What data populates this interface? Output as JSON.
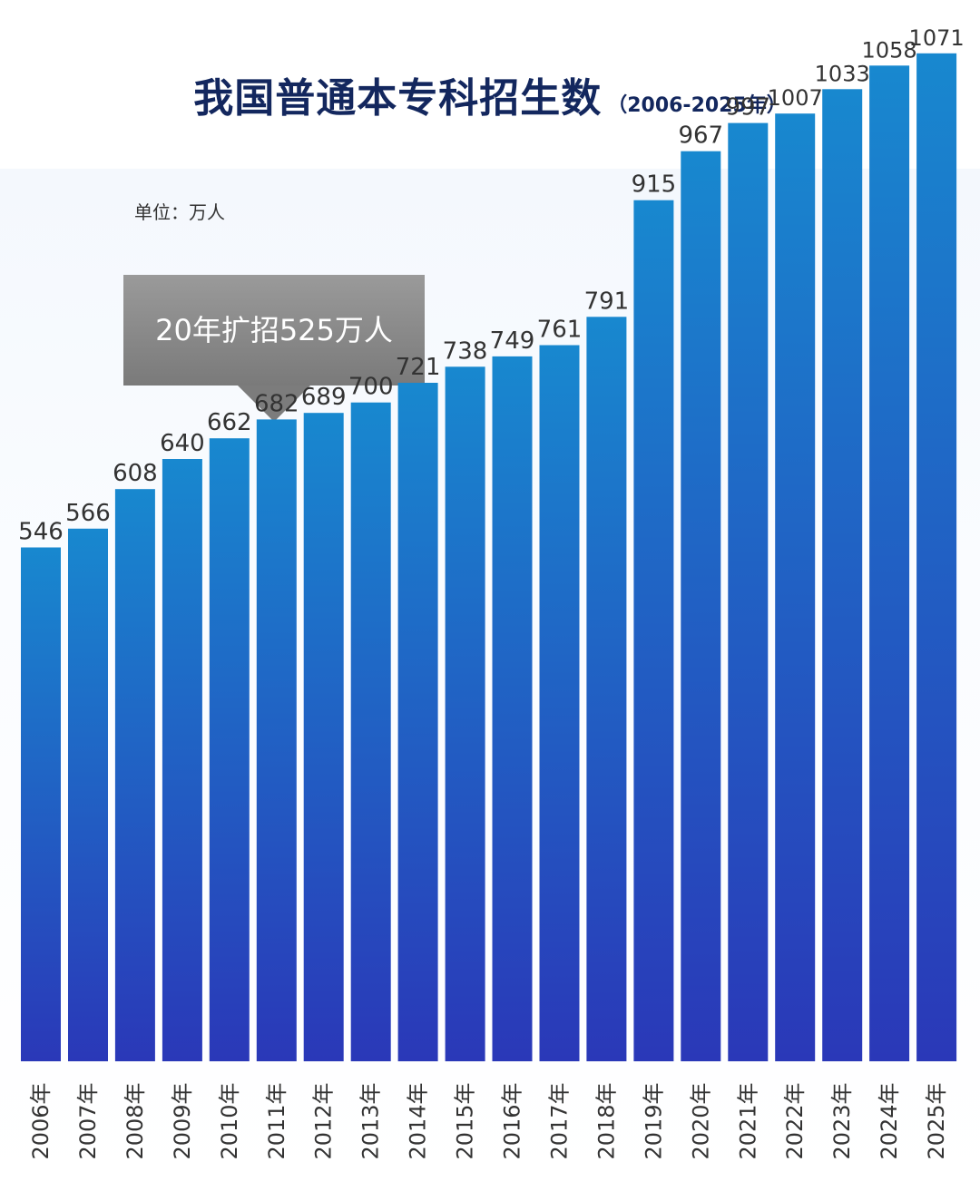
{
  "header": {
    "title": "我国普通本专科招生数",
    "subtitle": "（2006-2025年）"
  },
  "unit_label": "单位：万人",
  "callout_text": "20年扩招525万人",
  "colors": {
    "bar_top": "#1888cf",
    "bar_bottom": "#2a38b8",
    "title": "#13275e",
    "value_label": "#333333",
    "callout": "#8a8a8a"
  },
  "chart_data": {
    "type": "bar",
    "title": "我国普通本专科招生数",
    "subtitle": "（2006-2025年）",
    "unit": "单位：万人",
    "categories": [
      "2006年",
      "2007年",
      "2008年",
      "2009年",
      "2010年",
      "2011年",
      "2012年",
      "2013年",
      "2014年",
      "2015年",
      "2016年",
      "2017年",
      "2018年",
      "2019年",
      "2020年",
      "2021年",
      "2022年",
      "2023年",
      "2024年",
      "2025年"
    ],
    "values": [
      546,
      566,
      608,
      640,
      662,
      682,
      689,
      700,
      721,
      738,
      749,
      761,
      791,
      915,
      967,
      997,
      1007,
      1033,
      1058,
      1071
    ],
    "ylim": [
      0,
      1100
    ],
    "grid": false,
    "legend": "none",
    "annotation": "20年扩招525万人"
  }
}
